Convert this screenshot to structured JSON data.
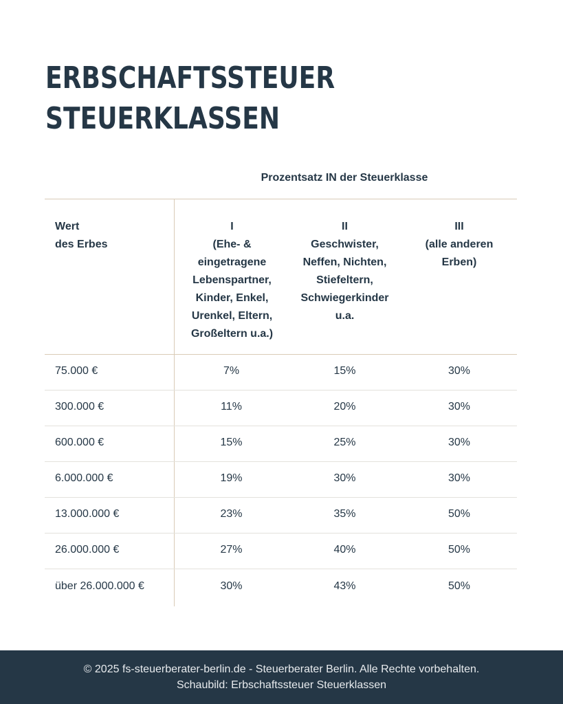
{
  "title": {
    "line1": "ERBSCHAFTSSTEUER",
    "line2": "STEUERKLASSEN"
  },
  "table": {
    "super_header": "Prozentsatz IN der Steuerklasse",
    "headers": [
      "Wert\ndes Erbes",
      "I\n(Ehe- &\neingetragene\nLebenspartner,\nKinder, Enkel,\nUrenkel, Eltern,\nGroßeltern u.a.)",
      "II\nGeschwister,\nNeffen, Nichten,\nStiefeltern,\nSchwiegerkinder\nu.a.",
      "III\n(alle anderen\nErben)"
    ],
    "rows": [
      [
        "75.000 €",
        "7%",
        "15%",
        "30%"
      ],
      [
        "300.000 €",
        "11%",
        "20%",
        "30%"
      ],
      [
        "600.000 €",
        "15%",
        "25%",
        "30%"
      ],
      [
        "6.000.000 €",
        "19%",
        "30%",
        "30%"
      ],
      [
        "13.000.000 €",
        "23%",
        "35%",
        "50%"
      ],
      [
        "26.000.000 €",
        "27%",
        "40%",
        "50%"
      ],
      [
        "über 26.000.000 €",
        "30%",
        "43%",
        "50%"
      ]
    ]
  },
  "footer": {
    "line1": "© 2025 fs-steuerberater-berlin.de - Steuerberater Berlin. Alle Rechte vorbehalten.",
    "line2": "Schaubild: Erbschaftssteuer Steuerklassen"
  },
  "colors": {
    "text": "#253746",
    "divider": "#d9cbb6",
    "footer_bg": "#253746"
  }
}
